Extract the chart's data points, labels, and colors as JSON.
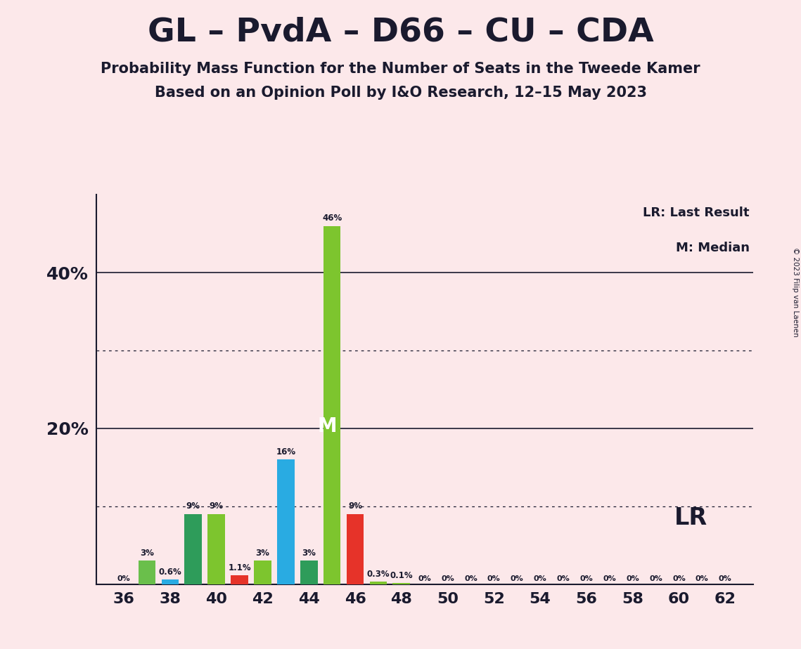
{
  "title": "GL – PvdA – D66 – CU – CDA",
  "subtitle1": "Probability Mass Function for the Number of Seats in the Tweede Kamer",
  "subtitle2": "Based on an Opinion Poll by I&O Research, 12–15 May 2023",
  "copyright": "© 2023 Filip van Laenen",
  "background_color": "#fce8ea",
  "bar_data": [
    {
      "seat": 36,
      "value": 0.0,
      "color": "#6abf4b",
      "label": "0%"
    },
    {
      "seat": 37,
      "value": 3.0,
      "color": "#6abf4b",
      "label": "3%"
    },
    {
      "seat": 38,
      "value": 0.6,
      "color": "#29abe2",
      "label": "0.6%"
    },
    {
      "seat": 39,
      "value": 9.0,
      "color": "#2e9c5a",
      "label": "9%"
    },
    {
      "seat": 40,
      "value": 9.0,
      "color": "#7dc52e",
      "label": "9%"
    },
    {
      "seat": 41,
      "value": 1.1,
      "color": "#e63329",
      "label": "1.1%"
    },
    {
      "seat": 42,
      "value": 3.0,
      "color": "#7dc52e",
      "label": "3%"
    },
    {
      "seat": 43,
      "value": 16.0,
      "color": "#29abe2",
      "label": "16%"
    },
    {
      "seat": 44,
      "value": 3.0,
      "color": "#2e9c5a",
      "label": "3%"
    },
    {
      "seat": 45,
      "value": 46.0,
      "color": "#7dc52e",
      "label": "46%"
    },
    {
      "seat": 46,
      "value": 9.0,
      "color": "#e63329",
      "label": "9%"
    },
    {
      "seat": 47,
      "value": 0.3,
      "color": "#7dc52e",
      "label": "0.3%"
    },
    {
      "seat": 48,
      "value": 0.1,
      "color": "#7dc52e",
      "label": "0.1%"
    },
    {
      "seat": 49,
      "value": 0.0,
      "color": "#7dc52e",
      "label": "0%"
    },
    {
      "seat": 50,
      "value": 0.0,
      "color": "#7dc52e",
      "label": "0%"
    },
    {
      "seat": 51,
      "value": 0.0,
      "color": "#7dc52e",
      "label": "0%"
    },
    {
      "seat": 52,
      "value": 0.0,
      "color": "#7dc52e",
      "label": "0%"
    },
    {
      "seat": 53,
      "value": 0.0,
      "color": "#7dc52e",
      "label": "0%"
    },
    {
      "seat": 54,
      "value": 0.0,
      "color": "#7dc52e",
      "label": "0%"
    },
    {
      "seat": 55,
      "value": 0.0,
      "color": "#7dc52e",
      "label": "0%"
    },
    {
      "seat": 56,
      "value": 0.0,
      "color": "#7dc52e",
      "label": "0%"
    },
    {
      "seat": 57,
      "value": 0.0,
      "color": "#7dc52e",
      "label": "0%"
    },
    {
      "seat": 58,
      "value": 0.0,
      "color": "#7dc52e",
      "label": "0%"
    },
    {
      "seat": 59,
      "value": 0.0,
      "color": "#7dc52e",
      "label": "0%"
    },
    {
      "seat": 60,
      "value": 0.0,
      "color": "#7dc52e",
      "label": "0%"
    },
    {
      "seat": 61,
      "value": 0.0,
      "color": "#7dc52e",
      "label": "0%"
    },
    {
      "seat": 62,
      "value": 0.0,
      "color": "#7dc52e",
      "label": "0%"
    }
  ],
  "median_seat": 45,
  "median_label": "M",
  "lr_label": "LR",
  "ylim": [
    0,
    50
  ],
  "xlabel_seats": [
    36,
    38,
    40,
    42,
    44,
    46,
    48,
    50,
    52,
    54,
    56,
    58,
    60,
    62
  ],
  "dotted_lines": [
    10,
    30
  ],
  "solid_lines": [
    20,
    40
  ]
}
